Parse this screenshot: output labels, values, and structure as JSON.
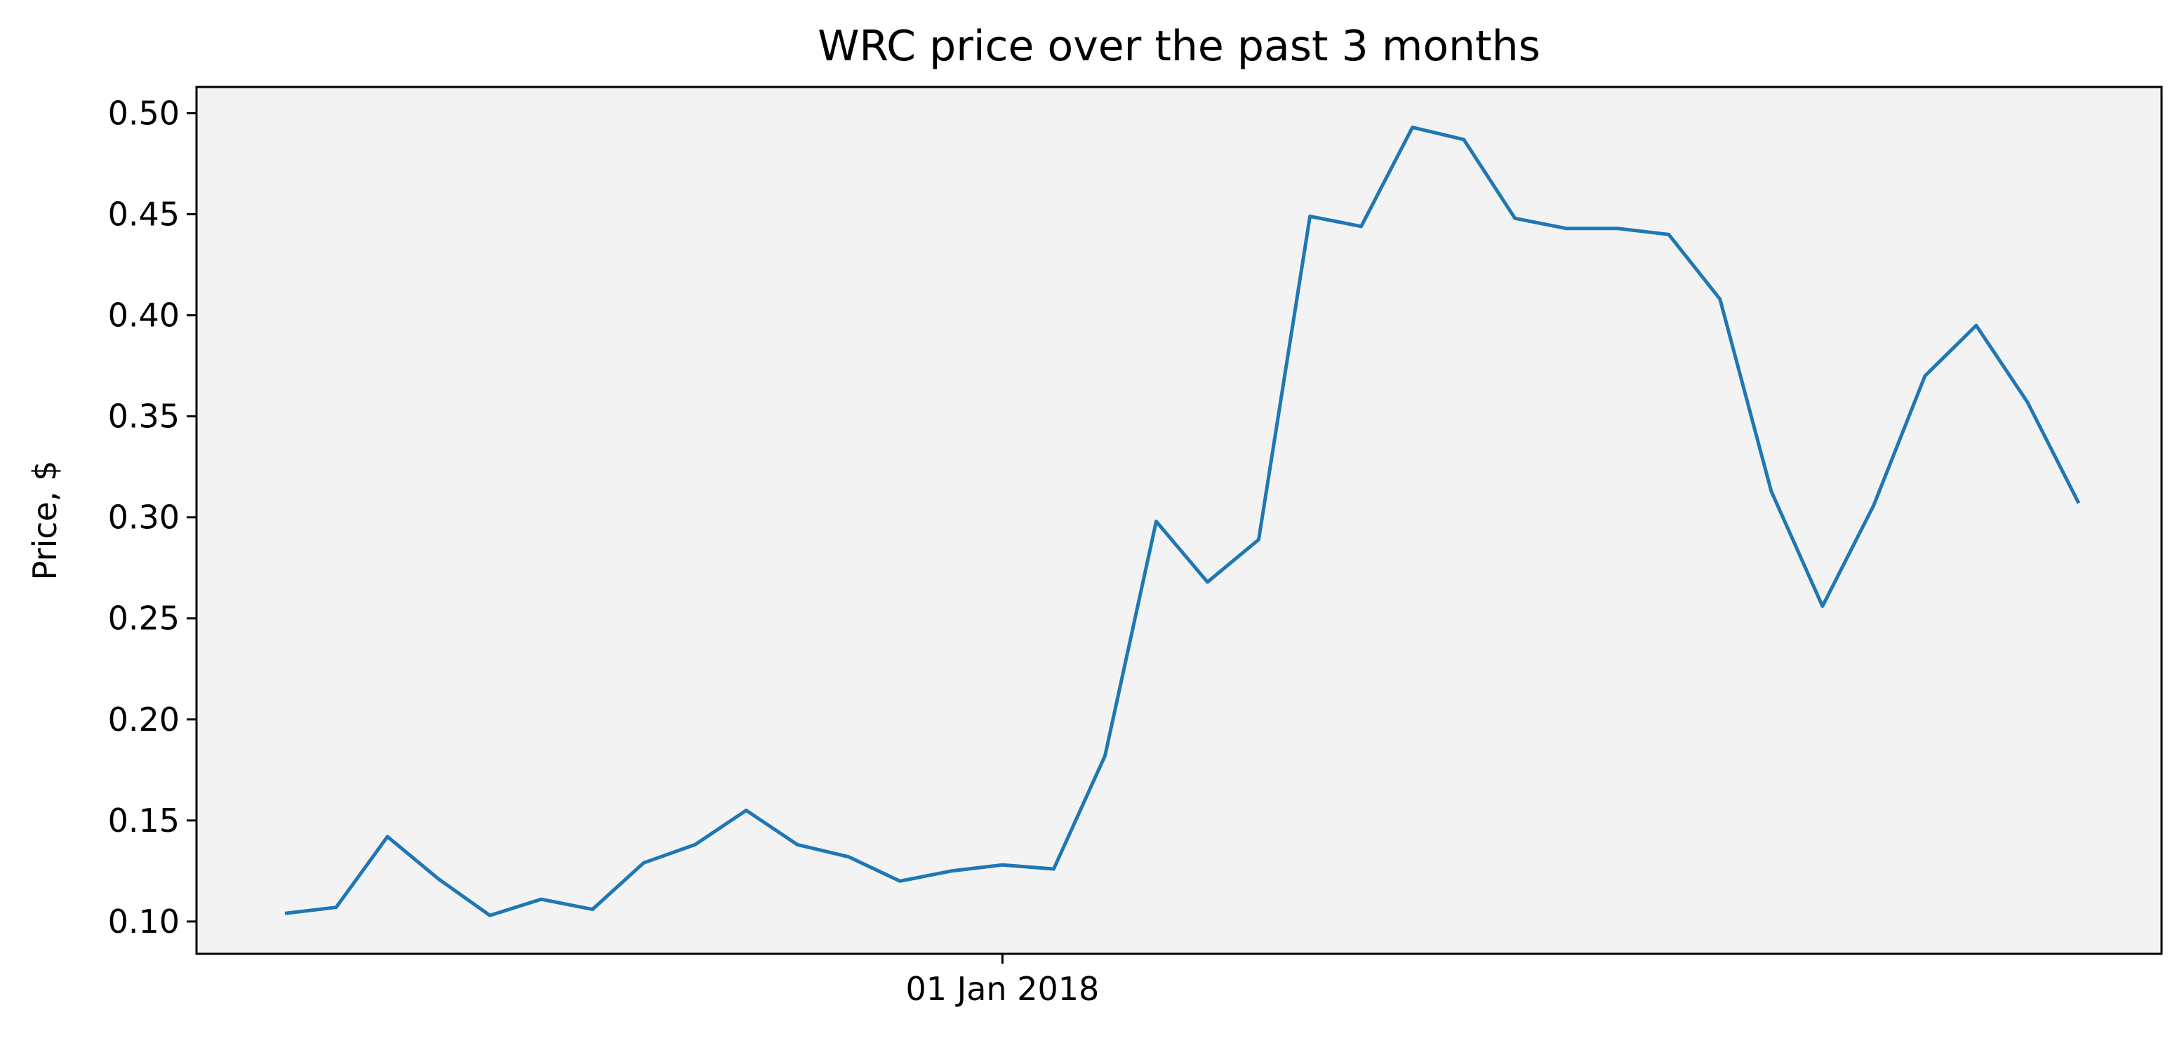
{
  "chart_data": {
    "type": "line",
    "title": "WRC price over the past 3 months",
    "xlabel": "",
    "ylabel": "Price, $",
    "x_tick_labels": [
      "01 Jan 2018"
    ],
    "y_tick_labels": [
      "0.10",
      "0.15",
      "0.20",
      "0.25",
      "0.30",
      "0.35",
      "0.40",
      "0.45",
      "0.50"
    ],
    "y_ticks": [
      0.1,
      0.15,
      0.2,
      0.25,
      0.3,
      0.35,
      0.4,
      0.45,
      0.5
    ],
    "ylim": [
      0.084,
      0.513
    ],
    "grid": false,
    "legend": "none",
    "colors": {
      "line": "#1f77b4",
      "plot_background": "#f3f3f3",
      "axes": "#000000"
    },
    "series": [
      {
        "values": [
          0.104,
          0.107,
          0.142,
          0.121,
          0.103,
          0.111,
          0.106,
          0.129,
          0.138,
          0.155,
          0.138,
          0.132,
          0.12,
          0.125,
          0.128,
          0.126,
          0.182,
          0.298,
          0.268,
          0.289,
          0.449,
          0.444,
          0.493,
          0.487,
          0.448,
          0.443,
          0.443,
          0.44,
          0.408,
          0.313,
          0.256,
          0.306,
          0.37,
          0.395,
          0.357,
          0.307
        ]
      }
    ]
  }
}
